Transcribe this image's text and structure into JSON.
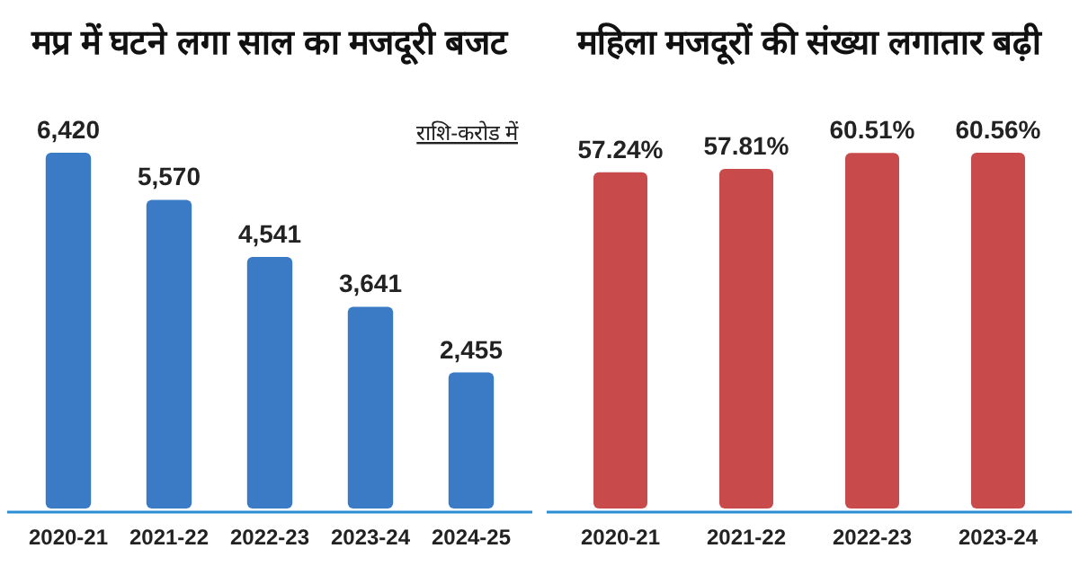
{
  "chart_data": [
    {
      "type": "bar",
      "title": "मप्र में घटने लगा साल का मजदूरी बजट",
      "categories": [
        "2020-21",
        "2021-22",
        "2022-23",
        "2023-24",
        "2024-25"
      ],
      "values": [
        6420,
        5570,
        4541,
        3641,
        2455
      ],
      "value_labels": [
        "6,420",
        "5,570",
        "4,541",
        "3,641",
        "2,455"
      ],
      "color": "#3b7bc6",
      "annotations": [
        "राशि-करोड में"
      ]
    },
    {
      "type": "bar",
      "title": "महिला मजदूरों की संख्या लगातार बढ़ी",
      "categories": [
        "2020-21",
        "2021-22",
        "2022-23",
        "2023-24"
      ],
      "values": [
        57.24,
        57.81,
        60.51,
        60.56
      ],
      "value_labels": [
        "57.24%",
        "57.81%",
        "60.51%",
        "60.56%"
      ],
      "color": "#c94a4b"
    }
  ]
}
